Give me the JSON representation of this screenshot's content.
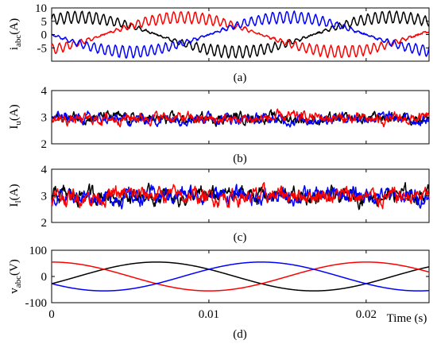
{
  "colors": {
    "phase_a": "#ff0000",
    "phase_b": "#000000",
    "phase_c": "#0000ff"
  },
  "chart_data": [
    {
      "type": "line",
      "id": "panel-a",
      "caption": "(a)",
      "ylabel_main": "i",
      "ylabel_sub": "abc",
      "ylabel_unit": "(A)",
      "xlim": [
        0,
        0.024
      ],
      "ylim": [
        -10,
        10
      ],
      "yticks": [
        -5,
        0,
        5,
        10
      ],
      "yticklabels": [
        "-5",
        "0",
        "5",
        "10"
      ],
      "signal": {
        "kind": "sine",
        "amplitude": 6.5,
        "frequency": 50,
        "ripple": 2.2,
        "noise": 0.5
      },
      "series": [
        {
          "color_key": "phase_b",
          "phase_deg": 60
        },
        {
          "color_key": "phase_a",
          "phase_deg": -60
        },
        {
          "color_key": "phase_c",
          "phase_deg": 180
        }
      ]
    },
    {
      "type": "line",
      "id": "panel-b",
      "caption": "(b)",
      "ylabel_main": "I",
      "ylabel_sub": "u",
      "ylabel_unit": "(A)",
      "xlim": [
        0,
        0.024
      ],
      "ylim": [
        2,
        4
      ],
      "yticks": [
        2,
        3,
        4
      ],
      "yticklabels": [
        "2",
        "3",
        "4"
      ],
      "signal": {
        "kind": "noise",
        "mean": 2.95,
        "noise": 0.12
      },
      "series": [
        {
          "color_key": "phase_b"
        },
        {
          "color_key": "phase_c"
        },
        {
          "color_key": "phase_a"
        }
      ]
    },
    {
      "type": "line",
      "id": "panel-c",
      "caption": "(c)",
      "ylabel_main": "I",
      "ylabel_sub": "l",
      "ylabel_unit": "(A)",
      "xlim": [
        0,
        0.024
      ],
      "ylim": [
        2,
        4
      ],
      "yticks": [
        2,
        3,
        4
      ],
      "yticklabels": [
        "2",
        "3",
        "4"
      ],
      "signal": {
        "kind": "noise",
        "mean": 3.0,
        "noise": 0.18
      },
      "series": [
        {
          "color_key": "phase_b"
        },
        {
          "color_key": "phase_c"
        },
        {
          "color_key": "phase_a"
        }
      ]
    },
    {
      "type": "line",
      "id": "panel-d",
      "caption": "(d)",
      "ylabel_main": "v",
      "ylabel_sub": "abc",
      "ylabel_unit": "(V)",
      "xlabel": "Time (s)",
      "xlim": [
        0,
        0.024
      ],
      "ylim": [
        -100,
        100
      ],
      "yticks": [
        -100,
        0,
        100
      ],
      "yticklabels": [
        "-100",
        "0",
        "100"
      ],
      "xticks": [
        0,
        0.01,
        0.02
      ],
      "xticklabels": [
        "0",
        "0.01",
        "0.02"
      ],
      "signal": {
        "kind": "sine",
        "amplitude": 55,
        "frequency": 50,
        "ripple": 0,
        "noise": 0
      },
      "series": [
        {
          "color_key": "phase_b",
          "phase_deg": -30
        },
        {
          "color_key": "phase_a",
          "phase_deg": 90
        },
        {
          "color_key": "phase_c",
          "phase_deg": 210
        }
      ]
    }
  ]
}
